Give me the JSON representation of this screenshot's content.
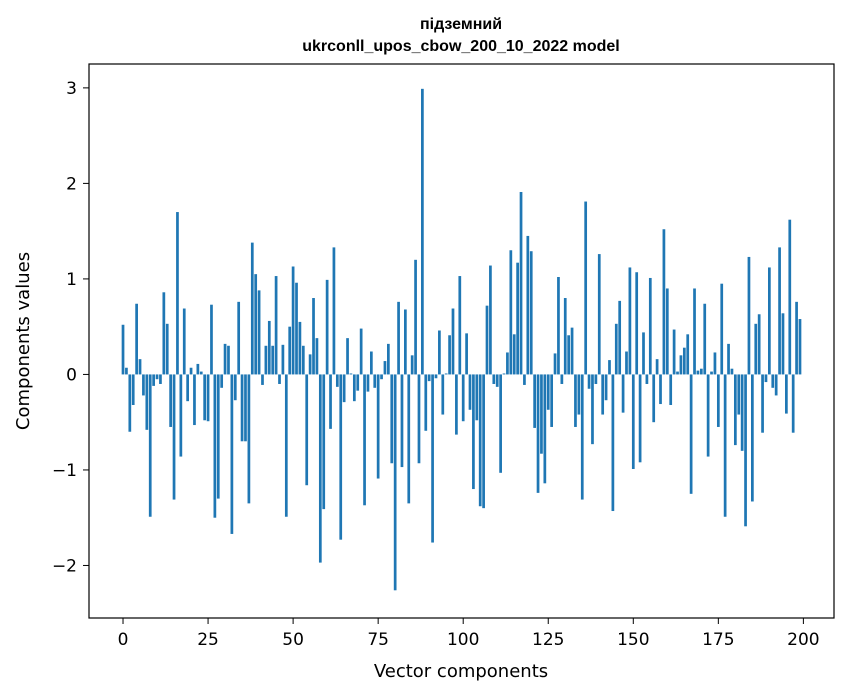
{
  "chart_data": {
    "type": "bar",
    "title": "підземний",
    "subtitle": "ukrconll_upos_cbow_200_10_2022 model",
    "xlabel": "Vector components",
    "ylabel": "Components values",
    "xlim": [
      -10,
      209
    ],
    "ylim": [
      -2.55,
      3.25
    ],
    "xticks": [
      0,
      25,
      50,
      75,
      100,
      125,
      150,
      175,
      200
    ],
    "xtick_labels": [
      "0",
      "25",
      "50",
      "75",
      "100",
      "125",
      "150",
      "175",
      "200"
    ],
    "yticks": [
      -2,
      -1,
      0,
      1,
      2,
      3
    ],
    "ytick_labels": [
      "−2",
      "−1",
      "0",
      "1",
      "2",
      "3"
    ],
    "grid": false,
    "bar_color": "#1f77b4",
    "x": [
      0,
      1,
      2,
      3,
      4,
      5,
      6,
      7,
      8,
      9,
      10,
      11,
      12,
      13,
      14,
      15,
      16,
      17,
      18,
      19,
      20,
      21,
      22,
      23,
      24,
      25,
      26,
      27,
      28,
      29,
      30,
      31,
      32,
      33,
      34,
      35,
      36,
      37,
      38,
      39,
      40,
      41,
      42,
      43,
      44,
      45,
      46,
      47,
      48,
      49,
      50,
      51,
      52,
      53,
      54,
      55,
      56,
      57,
      58,
      59,
      60,
      61,
      62,
      63,
      64,
      65,
      66,
      67,
      68,
      69,
      70,
      71,
      72,
      73,
      74,
      75,
      76,
      77,
      78,
      79,
      80,
      81,
      82,
      83,
      84,
      85,
      86,
      87,
      88,
      89,
      90,
      91,
      92,
      93,
      94,
      95,
      96,
      97,
      98,
      99,
      100,
      101,
      102,
      103,
      104,
      105,
      106,
      107,
      108,
      109,
      110,
      111,
      112,
      113,
      114,
      115,
      116,
      117,
      118,
      119,
      120,
      121,
      122,
      123,
      124,
      125,
      126,
      127,
      128,
      129,
      130,
      131,
      132,
      133,
      134,
      135,
      136,
      137,
      138,
      139,
      140,
      141,
      142,
      143,
      144,
      145,
      146,
      147,
      148,
      149,
      150,
      151,
      152,
      153,
      154,
      155,
      156,
      157,
      158,
      159,
      160,
      161,
      162,
      163,
      164,
      165,
      166,
      167,
      168,
      169,
      170,
      171,
      172,
      173,
      174,
      175,
      176,
      177,
      178,
      179,
      180,
      181,
      182,
      183,
      184,
      185,
      186,
      187,
      188,
      189,
      190,
      191,
      192,
      193,
      194,
      195,
      196,
      197,
      198,
      199
    ],
    "values": [
      0.52,
      0.07,
      -0.6,
      -0.32,
      0.74,
      0.16,
      -0.22,
      -0.58,
      -1.49,
      -0.12,
      -0.05,
      -0.1,
      0.86,
      0.53,
      -0.55,
      -1.31,
      1.7,
      -0.86,
      0.69,
      -0.28,
      0.07,
      -0.53,
      0.11,
      0.03,
      -0.48,
      -0.49,
      0.73,
      -1.5,
      -1.3,
      -0.14,
      0.32,
      0.3,
      -1.67,
      -0.27,
      0.76,
      -0.7,
      -0.7,
      -1.35,
      1.38,
      1.05,
      0.88,
      -0.11,
      0.3,
      0.56,
      0.3,
      1.03,
      -0.1,
      0.31,
      -1.49,
      0.5,
      1.13,
      0.96,
      0.55,
      0.3,
      -1.16,
      0.21,
      0.8,
      0.38,
      -1.97,
      -1.41,
      0.99,
      -0.57,
      1.33,
      -0.13,
      -1.73,
      -0.29,
      0.38,
      0.01,
      -0.28,
      -0.17,
      0.48,
      -1.37,
      -0.18,
      0.24,
      -0.14,
      -1.09,
      -0.05,
      0.14,
      0.32,
      -0.93,
      -2.26,
      0.76,
      -0.97,
      0.68,
      -1.35,
      0.2,
      1.2,
      -0.93,
      2.99,
      -0.59,
      -0.07,
      -1.76,
      -0.04,
      0.46,
      -0.42,
      0.01,
      0.41,
      0.69,
      -0.63,
      1.03,
      -0.49,
      0.43,
      -0.37,
      -1.2,
      -0.48,
      -1.38,
      -1.4,
      0.72,
      1.14,
      -0.1,
      -0.13,
      -1.03,
      0.01,
      0.23,
      1.3,
      0.42,
      1.17,
      1.91,
      -0.11,
      1.45,
      1.29,
      -0.56,
      -1.24,
      -0.83,
      -1.14,
      -0.37,
      -0.55,
      0.22,
      1.02,
      -0.1,
      0.8,
      0.41,
      0.49,
      -0.55,
      -0.42,
      -1.31,
      1.81,
      -0.15,
      -0.73,
      -0.1,
      1.26,
      -0.42,
      -0.27,
      0.15,
      -1.43,
      0.53,
      0.77,
      -0.4,
      0.24,
      1.12,
      -0.99,
      1.07,
      -0.92,
      0.44,
      -0.1,
      1.01,
      -0.5,
      0.16,
      -0.31,
      1.52,
      0.9,
      -0.32,
      0.47,
      0.03,
      0.2,
      0.28,
      0.42,
      -1.25,
      0.9,
      0.04,
      0.06,
      0.74,
      -0.86,
      0.03,
      0.23,
      -0.55,
      0.95,
      -1.49,
      0.32,
      0.06,
      -0.74,
      -0.42,
      -0.8,
      -1.59,
      1.23,
      -1.33,
      0.53,
      0.63,
      -0.61,
      -0.08,
      1.12,
      -0.14,
      -0.22,
      1.33,
      0.64,
      -0.41,
      1.62,
      -0.61,
      0.76,
      0.58
    ]
  }
}
